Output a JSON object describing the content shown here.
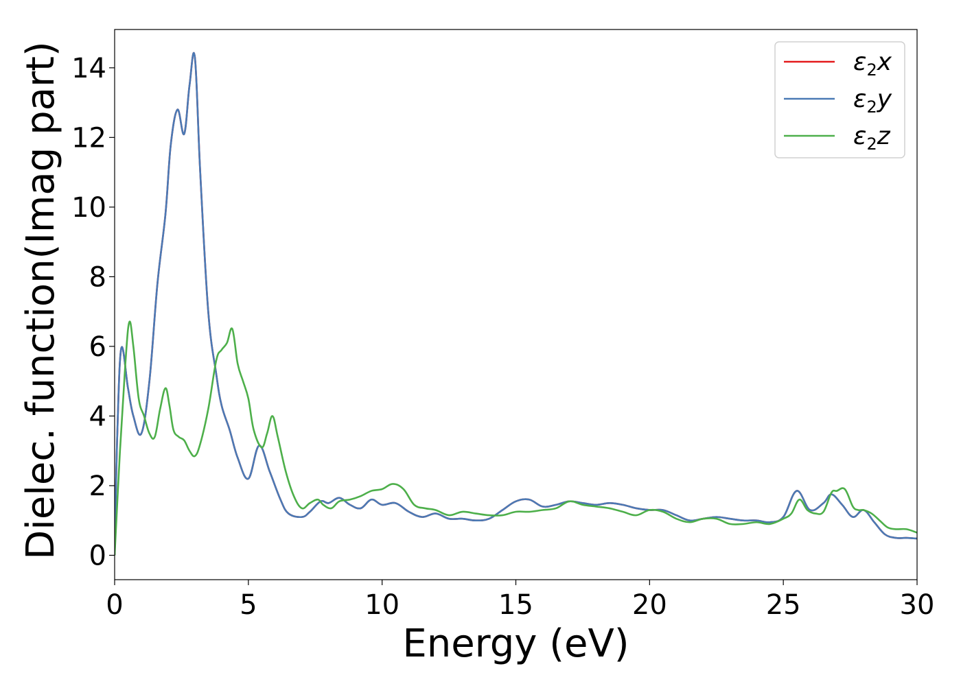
{
  "chart_data": {
    "type": "line",
    "title": "",
    "xlabel": "Energy (eV)",
    "ylabel": "Dielec. function(Imag part)",
    "xlim": [
      0,
      30
    ],
    "ylim": [
      -0.7,
      15.1
    ],
    "xticks": [
      0,
      5,
      10,
      15,
      20,
      25,
      30
    ],
    "yticks": [
      0,
      2,
      4,
      6,
      8,
      10,
      12,
      14
    ],
    "grid": false,
    "legend_position": "top-right",
    "series": [
      {
        "name_base": "ε",
        "name_sub": "2",
        "name_suffix": "x",
        "color": "#e41a1c",
        "x": [
          0,
          0.1,
          0.25,
          0.5,
          0.7,
          1.0,
          1.3,
          1.6,
          1.9,
          2.1,
          2.35,
          2.6,
          2.8,
          3.0,
          3.2,
          3.5,
          3.8,
          4.0,
          4.3,
          4.6,
          5.0,
          5.4,
          5.8,
          6.2,
          6.5,
          7.0,
          7.3,
          7.7,
          8.0,
          8.4,
          8.8,
          9.2,
          9.6,
          10.0,
          10.5,
          11.0,
          11.5,
          12.0,
          12.5,
          13.0,
          13.5,
          14.0,
          14.5,
          15.0,
          15.5,
          16.0,
          16.5,
          17.0,
          17.5,
          18.0,
          18.5,
          19.0,
          19.5,
          20.0,
          20.5,
          21.0,
          21.5,
          22.0,
          22.5,
          23.0,
          23.5,
          24.0,
          24.5,
          25.0,
          25.5,
          26.0,
          26.5,
          26.8,
          27.2,
          27.6,
          28.0,
          28.4,
          28.8,
          29.2,
          29.6,
          30.0
        ],
        "values": [
          0,
          3.5,
          5.95,
          4.8,
          4.0,
          3.5,
          5.0,
          7.8,
          9.8,
          11.8,
          12.8,
          12.1,
          13.5,
          14.3,
          11.0,
          7.0,
          5.2,
          4.3,
          3.6,
          2.8,
          2.2,
          3.15,
          2.4,
          1.6,
          1.2,
          1.1,
          1.25,
          1.55,
          1.5,
          1.65,
          1.45,
          1.35,
          1.6,
          1.45,
          1.5,
          1.25,
          1.1,
          1.2,
          1.05,
          1.05,
          1.0,
          1.05,
          1.3,
          1.55,
          1.6,
          1.4,
          1.45,
          1.55,
          1.5,
          1.45,
          1.5,
          1.45,
          1.35,
          1.3,
          1.3,
          1.15,
          1.0,
          1.05,
          1.1,
          1.05,
          1.0,
          1.0,
          0.95,
          1.1,
          1.85,
          1.3,
          1.5,
          1.75,
          1.45,
          1.1,
          1.3,
          0.95,
          0.6,
          0.5,
          0.5,
          0.48
        ]
      },
      {
        "name_base": "ε",
        "name_sub": "2",
        "name_suffix": "y",
        "color": "#4a7ab5",
        "x": [
          0,
          0.1,
          0.25,
          0.5,
          0.7,
          1.0,
          1.3,
          1.6,
          1.9,
          2.1,
          2.35,
          2.6,
          2.8,
          3.0,
          3.2,
          3.5,
          3.8,
          4.0,
          4.3,
          4.6,
          5.0,
          5.4,
          5.8,
          6.2,
          6.5,
          7.0,
          7.3,
          7.7,
          8.0,
          8.4,
          8.8,
          9.2,
          9.6,
          10.0,
          10.5,
          11.0,
          11.5,
          12.0,
          12.5,
          13.0,
          13.5,
          14.0,
          14.5,
          15.0,
          15.5,
          16.0,
          16.5,
          17.0,
          17.5,
          18.0,
          18.5,
          19.0,
          19.5,
          20.0,
          20.5,
          21.0,
          21.5,
          22.0,
          22.5,
          23.0,
          23.5,
          24.0,
          24.5,
          25.0,
          25.5,
          26.0,
          26.5,
          26.8,
          27.2,
          27.6,
          28.0,
          28.4,
          28.8,
          29.2,
          29.6,
          30.0
        ],
        "values": [
          0,
          3.5,
          5.95,
          4.8,
          4.0,
          3.5,
          5.0,
          7.8,
          9.8,
          11.8,
          12.8,
          12.1,
          13.5,
          14.3,
          11.0,
          7.0,
          5.2,
          4.3,
          3.6,
          2.8,
          2.2,
          3.15,
          2.4,
          1.6,
          1.2,
          1.1,
          1.25,
          1.55,
          1.5,
          1.65,
          1.45,
          1.35,
          1.6,
          1.45,
          1.5,
          1.25,
          1.1,
          1.2,
          1.05,
          1.05,
          1.0,
          1.05,
          1.3,
          1.55,
          1.6,
          1.4,
          1.45,
          1.55,
          1.5,
          1.45,
          1.5,
          1.45,
          1.35,
          1.3,
          1.3,
          1.15,
          1.0,
          1.05,
          1.1,
          1.05,
          1.0,
          1.0,
          0.95,
          1.1,
          1.85,
          1.3,
          1.5,
          1.75,
          1.45,
          1.1,
          1.3,
          0.95,
          0.6,
          0.5,
          0.5,
          0.48
        ]
      },
      {
        "name_base": "ε",
        "name_sub": "2",
        "name_suffix": "z",
        "color": "#4daf4a",
        "x": [
          0,
          0.2,
          0.4,
          0.55,
          0.7,
          0.9,
          1.1,
          1.3,
          1.5,
          1.7,
          1.9,
          2.05,
          2.2,
          2.4,
          2.6,
          2.8,
          3.0,
          3.2,
          3.5,
          3.8,
          4.0,
          4.2,
          4.4,
          4.6,
          4.8,
          5.0,
          5.2,
          5.5,
          5.7,
          5.9,
          6.1,
          6.4,
          6.7,
          7.0,
          7.3,
          7.6,
          7.8,
          8.1,
          8.4,
          8.8,
          9.2,
          9.6,
          10.0,
          10.4,
          10.8,
          11.2,
          11.6,
          12.0,
          12.5,
          13.0,
          13.5,
          14.0,
          14.5,
          15.0,
          15.5,
          16.0,
          16.5,
          17.0,
          17.5,
          18.0,
          18.5,
          19.0,
          19.5,
          20.0,
          20.5,
          21.0,
          21.5,
          22.0,
          22.5,
          23.0,
          23.5,
          24.0,
          24.5,
          25.0,
          25.3,
          25.6,
          25.9,
          26.2,
          26.5,
          26.8,
          27.0,
          27.3,
          27.6,
          27.8,
          28.0,
          28.3,
          28.6,
          28.9,
          29.2,
          29.6,
          30.0
        ],
        "values": [
          0,
          3.0,
          5.5,
          6.7,
          6.0,
          4.5,
          4.0,
          3.5,
          3.4,
          4.2,
          4.8,
          4.3,
          3.6,
          3.4,
          3.3,
          3.0,
          2.85,
          3.2,
          4.2,
          5.6,
          5.9,
          6.1,
          6.5,
          5.5,
          5.0,
          4.5,
          3.6,
          3.1,
          3.5,
          4.0,
          3.4,
          2.4,
          1.7,
          1.35,
          1.5,
          1.6,
          1.45,
          1.35,
          1.55,
          1.6,
          1.7,
          1.85,
          1.9,
          2.05,
          1.9,
          1.45,
          1.35,
          1.3,
          1.15,
          1.25,
          1.2,
          1.15,
          1.15,
          1.25,
          1.25,
          1.3,
          1.35,
          1.55,
          1.45,
          1.4,
          1.35,
          1.25,
          1.15,
          1.3,
          1.25,
          1.05,
          0.95,
          1.05,
          1.05,
          0.9,
          0.9,
          0.95,
          0.9,
          1.05,
          1.2,
          1.6,
          1.3,
          1.2,
          1.25,
          1.8,
          1.85,
          1.9,
          1.4,
          1.3,
          1.3,
          1.2,
          1.0,
          0.8,
          0.75,
          0.75,
          0.65
        ]
      }
    ]
  }
}
